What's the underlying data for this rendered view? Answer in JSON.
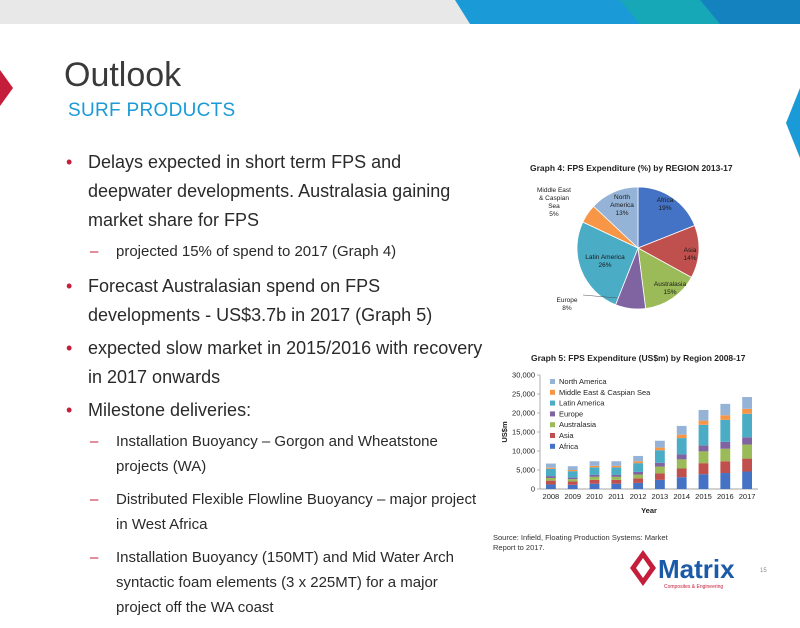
{
  "slide": {
    "title": "Outlook",
    "subtitle": "SURF PRODUCTS",
    "page_number": "15",
    "source": "Source: Infield, Floating Production Systems: Market Report to 2017.",
    "logo_text": "Matrix",
    "logo_sub": "Composites & Engineering",
    "bullets": [
      "Delays expected in short term FPS and deepwater developments. Australasia gaining market share for FPS",
      "projected 15% of spend to 2017 (Graph 4)",
      "Forecast Australasian spend on FPS developments - US$3.7b in 2017 (Graph 5)",
      "expected slow market in 2015/2016 with recovery in 2017 onwards",
      "Milestone deliveries:",
      "Installation Buoyancy – Gorgon and Wheatstone projects (WA)",
      "Distributed Flexible Flowline Buoyancy – major project in West Africa",
      "Installation Buoyancy (150MT) and Mid Water Arch syntactic foam elements (3 x 225MT) for a major project off the WA coast"
    ],
    "colors": {
      "accent_red": "#c41e3a",
      "band_blue": "#1a9ad6",
      "band_teal": "#17a8b8"
    }
  },
  "chart_data": [
    {
      "type": "pie",
      "title": "Graph 4: FPS Expenditure (%) by REGION 2013-17",
      "slices": [
        {
          "label": "Africa",
          "pct_label": "19%",
          "value": 19,
          "color": "#4472c4"
        },
        {
          "label": "Asia",
          "pct_label": "14%",
          "value": 14,
          "color": "#c0504d"
        },
        {
          "label": "Australasia",
          "pct_label": "15%",
          "value": 15,
          "color": "#9bbb59"
        },
        {
          "label": "Europe",
          "pct_label": "8%",
          "value": 8,
          "color": "#8064a2"
        },
        {
          "label": "Latin America",
          "pct_label": "26%",
          "value": 26,
          "color": "#4bacc6"
        },
        {
          "label": "Middle East & Caspian Sea",
          "pct_label": "5%",
          "value": 5,
          "color": "#f79646"
        },
        {
          "label": "North America",
          "pct_label": "13%",
          "value": 13,
          "color": "#95b3d7"
        }
      ]
    },
    {
      "type": "bar",
      "stacked": true,
      "title": "Graph 5: FPS Expenditure (US$m) by Region 2008-17",
      "xlabel": "Year",
      "ylabel": "US$m",
      "ylim": [
        0,
        30000
      ],
      "yticks": [
        0,
        5000,
        10000,
        15000,
        20000,
        25000,
        30000
      ],
      "ytick_labels": [
        "0",
        "5,000",
        "10,000",
        "15,000",
        "20,000",
        "25,000",
        "30,000"
      ],
      "categories": [
        "2008",
        "2009",
        "2010",
        "2011",
        "2012",
        "2013",
        "2014",
        "2015",
        "2016",
        "2017"
      ],
      "legend_position": "top-left",
      "series": [
        {
          "name": "Africa",
          "color": "#4472c4",
          "values": [
            1200,
            1100,
            1400,
            1400,
            1600,
            2400,
            3100,
            3900,
            4200,
            4600
          ]
        },
        {
          "name": "Asia",
          "color": "#c0504d",
          "values": [
            1000,
            900,
            1000,
            1000,
            1200,
            1700,
            2300,
            2900,
            3100,
            3400
          ]
        },
        {
          "name": "Australasia",
          "color": "#9bbb59",
          "values": [
            700,
            600,
            800,
            800,
            1000,
            1800,
            2400,
            3100,
            3300,
            3700
          ]
        },
        {
          "name": "Europe",
          "color": "#8064a2",
          "values": [
            500,
            400,
            500,
            500,
            700,
            1000,
            1300,
            1600,
            1800,
            1900
          ]
        },
        {
          "name": "Latin America",
          "color": "#4bacc6",
          "values": [
            1900,
            1700,
            2000,
            2000,
            2300,
            3300,
            4300,
            5400,
            5800,
            6200
          ]
        },
        {
          "name": "Middle East & Caspian Sea",
          "color": "#f79646",
          "values": [
            300,
            300,
            400,
            400,
            500,
            700,
            900,
            1100,
            1200,
            1300
          ]
        },
        {
          "name": "North America",
          "color": "#95b3d7",
          "values": [
            1100,
            1000,
            1200,
            1200,
            1400,
            1800,
            2300,
            2800,
            3000,
            3100
          ]
        }
      ]
    }
  ]
}
